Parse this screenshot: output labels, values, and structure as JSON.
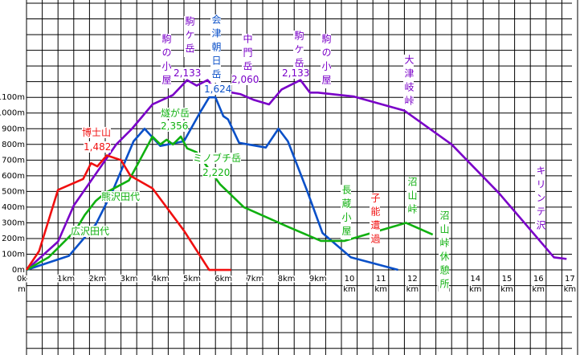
{
  "chart_data": {
    "type": "line",
    "xlim": [
      0,
      17.5
    ],
    "ylim": [
      -500,
      1700
    ],
    "grid": {
      "x": 0.5,
      "y": 100
    },
    "xticks": [
      {
        "value": 0,
        "label": "0km"
      },
      {
        "value": 1,
        "label": "1km"
      },
      {
        "value": 2,
        "label": "2km"
      },
      {
        "value": 3,
        "label": "3km"
      },
      {
        "value": 4,
        "label": "4km"
      },
      {
        "value": 5,
        "label": "5km"
      },
      {
        "value": 6,
        "label": "6km"
      },
      {
        "value": 7,
        "label": "7km"
      },
      {
        "value": 8,
        "label": "8km"
      },
      {
        "value": 9,
        "label": "9km"
      },
      {
        "value": 10,
        "label": "10km"
      },
      {
        "value": 11,
        "label": "11km"
      },
      {
        "value": 12,
        "label": "12km"
      },
      {
        "value": 13,
        "label": "13km"
      },
      {
        "value": 14,
        "label": "14km"
      },
      {
        "value": 15,
        "label": "15km"
      },
      {
        "value": 16,
        "label": "16km"
      },
      {
        "value": 17,
        "label": "17km"
      }
    ],
    "yticks": [
      {
        "value": 0,
        "label": "0m"
      },
      {
        "value": 100,
        "label": "100m"
      },
      {
        "value": 200,
        "label": "200m"
      },
      {
        "value": 300,
        "label": "300m"
      },
      {
        "value": 400,
        "label": "400m"
      },
      {
        "value": 500,
        "label": "500m"
      },
      {
        "value": 600,
        "label": "600m"
      },
      {
        "value": 700,
        "label": "700m"
      },
      {
        "value": 800,
        "label": "800m"
      },
      {
        "value": 900,
        "label": "900m"
      },
      {
        "value": 1000,
        "label": "1000m"
      },
      {
        "value": 1100,
        "label": "1100m"
      }
    ],
    "series": [
      {
        "color": "#7a00c8",
        "x": [
          0,
          1,
          1.5,
          2.85,
          3.35,
          4.0,
          4.65,
          5.1,
          5.4,
          5.75,
          6.0,
          6.8,
          7.2,
          7.7,
          8.1,
          8.7,
          9.0,
          9.25,
          10.4,
          12.0,
          13.5,
          15.0,
          16.75,
          17.15
        ],
        "values": [
          0,
          180,
          410,
          800,
          900,
          1055,
          1115,
          1210,
          1175,
          1210,
          1150,
          1120,
          1085,
          1055,
          1150,
          1210,
          1130,
          1130,
          1105,
          1015,
          800,
          490,
          80,
          70
        ]
      },
      {
        "color": "#0a50c8",
        "x": [
          0,
          1.35,
          2.2,
          2.75,
          3.4,
          3.75,
          4.25,
          5.0,
          5.5,
          5.8,
          6.0,
          6.25,
          6.4,
          6.75,
          7.6,
          8.0,
          8.3,
          8.9,
          9.4,
          10.3,
          11.8
        ],
        "values": [
          0,
          90,
          290,
          510,
          820,
          900,
          790,
          820,
          1000,
          1100,
          1100,
          980,
          960,
          810,
          780,
          900,
          820,
          510,
          235,
          80,
          0
        ]
      },
      {
        "color": "#10b010",
        "x": [
          0,
          0.7,
          1.55,
          1.85,
          2.2,
          2.5,
          3.25,
          3.6,
          4.0,
          4.25,
          4.45,
          4.65,
          4.9,
          5.1,
          5.4,
          6.15,
          6.9,
          8.3,
          9.35,
          10.1,
          12.05,
          12.9
        ],
        "values": [
          0,
          80,
          250,
          350,
          440,
          490,
          570,
          700,
          850,
          800,
          830,
          800,
          850,
          775,
          750,
          545,
          400,
          275,
          185,
          185,
          300,
          225
        ]
      },
      {
        "color": "#f01010",
        "x": [
          0,
          0.4,
          1.0,
          1.8,
          2.05,
          2.25,
          2.55,
          3.0,
          3.3,
          4.0,
          5.0,
          5.8,
          6.5
        ],
        "values": [
          0,
          120,
          510,
          580,
          680,
          660,
          730,
          700,
          600,
          520,
          250,
          0,
          0
        ]
      }
    ],
    "annotations": [
      {
        "text": "駒の小屋",
        "color": "#7a00c8"
      },
      {
        "text": "駒ケ岳",
        "color": "#7a00c8"
      },
      {
        "text": "2,133",
        "color": "#7a00c8"
      },
      {
        "text": "会津朝日岳",
        "color": "#0a50c8"
      },
      {
        "text": "1,624",
        "color": "#0a50c8"
      },
      {
        "text": "中門岳",
        "color": "#7a00c8"
      },
      {
        "text": "2,060",
        "color": "#7a00c8"
      },
      {
        "text": "駒ケ岳",
        "color": "#7a00c8"
      },
      {
        "text": "2,133",
        "color": "#7a00c8"
      },
      {
        "text": "駒の小屋",
        "color": "#7a00c8"
      },
      {
        "text": "大津岐峠",
        "color": "#7a00c8"
      },
      {
        "text": "キリンテ沢",
        "color": "#7a00c8"
      },
      {
        "text": "博士山",
        "color": "#f01010"
      },
      {
        "text": "1,482",
        "color": "#f01010"
      },
      {
        "text": "燧が岳",
        "color": "#10b010"
      },
      {
        "text": "2,356",
        "color": "#10b010"
      },
      {
        "text": "ミノブチ岳",
        "color": "#10b010"
      },
      {
        "text": "2,220",
        "color": "#10b010"
      },
      {
        "text": "熊沢田代",
        "color": "#10b010"
      },
      {
        "text": "広沢田代",
        "color": "#10b010"
      },
      {
        "text": "長蔵小屋",
        "color": "#10b010"
      },
      {
        "text": "子能遭過",
        "color": "#f01010"
      },
      {
        "text": "沼山峠",
        "color": "#10b010"
      },
      {
        "text": "沼山峠休憩所",
        "color": "#10b010"
      }
    ]
  }
}
